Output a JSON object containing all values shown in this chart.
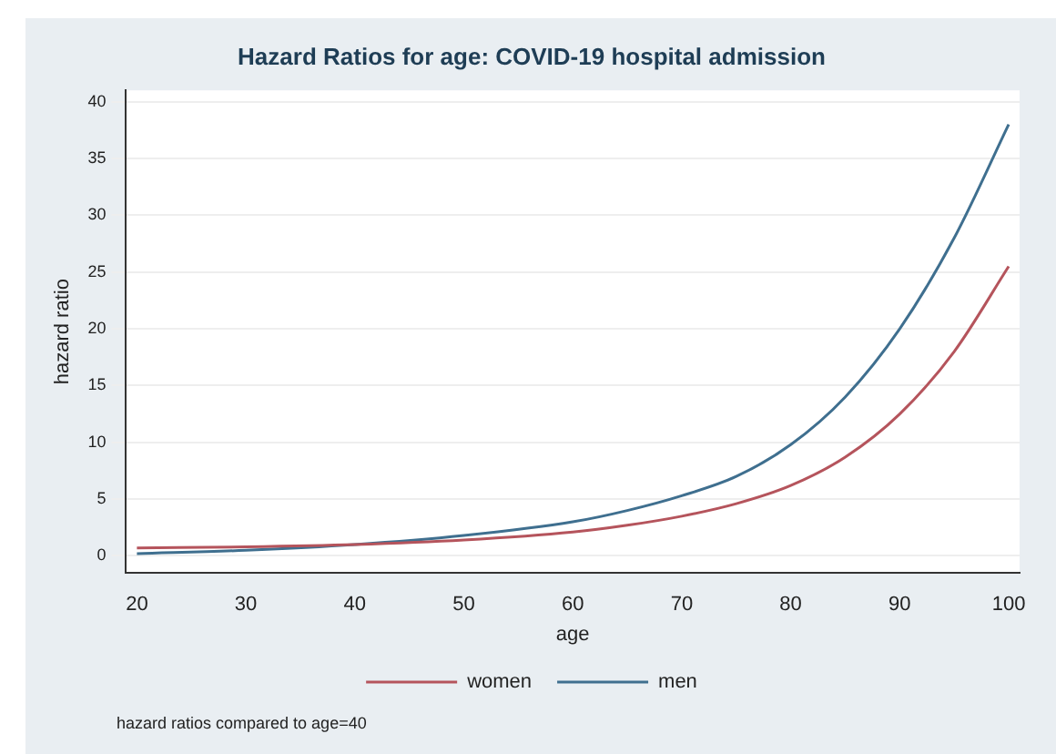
{
  "chart_data": {
    "type": "line",
    "title": "Hazard Ratios for age: COVID-19 hospital admission",
    "xlabel": "age",
    "ylabel": "hazard ratio",
    "x": [
      20,
      30,
      40,
      50,
      60,
      65,
      70,
      75,
      80,
      85,
      90,
      95,
      100
    ],
    "series": [
      {
        "name": "women",
        "color": "#b5545c",
        "values": [
          0.7,
          0.8,
          1,
          1.4,
          2.1,
          2.7,
          3.5,
          4.6,
          6.2,
          8.7,
          12.5,
          18,
          25.5
        ]
      },
      {
        "name": "men",
        "color": "#3f6f8f",
        "values": [
          0.2,
          0.5,
          1,
          1.8,
          3,
          4,
          5.3,
          7,
          9.8,
          14,
          20,
          28,
          38
        ]
      }
    ],
    "xlim": [
      19,
      101
    ],
    "xticks": [
      20,
      30,
      40,
      50,
      60,
      70,
      80,
      90,
      100
    ],
    "ylim": [
      -1.5,
      41
    ],
    "yticks": [
      0,
      5,
      10,
      15,
      20,
      25,
      30,
      35,
      40
    ],
    "grid": "y",
    "legend": "bottom",
    "marker": "none",
    "line_style": "solid",
    "annotations": [
      "hazard ratios compared to age=40"
    ]
  }
}
